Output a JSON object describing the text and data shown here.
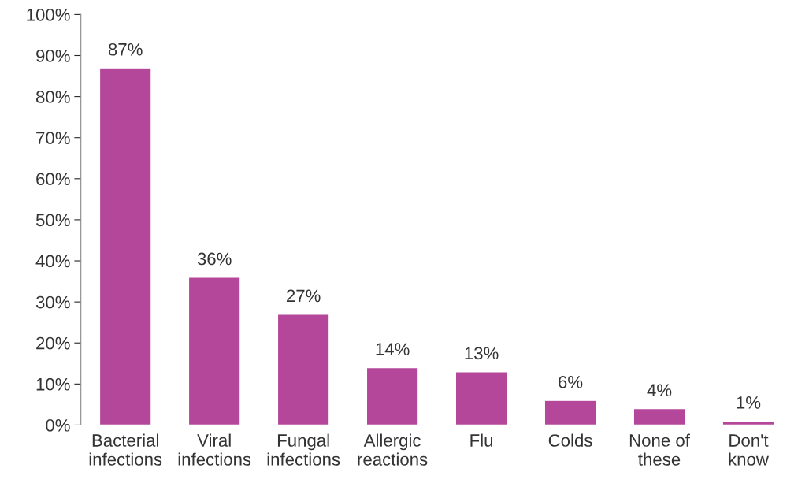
{
  "chart_data": {
    "type": "bar",
    "categories": [
      "Bacterial\ninfections",
      "Viral\ninfections",
      "Fungal\ninfections",
      "Allergic\nreactions",
      "Flu",
      "Colds",
      "None of\nthese",
      "Don't\nknow"
    ],
    "values": [
      87,
      36,
      27,
      14,
      13,
      6,
      4,
      1
    ],
    "value_labels": [
      "87%",
      "36%",
      "27%",
      "14%",
      "13%",
      "6%",
      "4%",
      "1%"
    ],
    "color": "#b5479b",
    "ylim": [
      0,
      100
    ],
    "yticks": [
      {
        "value": 0,
        "label": "0%"
      },
      {
        "value": 10,
        "label": "10%"
      },
      {
        "value": 20,
        "label": "20%"
      },
      {
        "value": 30,
        "label": "30%"
      },
      {
        "value": 40,
        "label": "40%"
      },
      {
        "value": 50,
        "label": "50%"
      },
      {
        "value": 60,
        "label": "60%"
      },
      {
        "value": 70,
        "label": "70%"
      },
      {
        "value": 80,
        "label": "80%"
      },
      {
        "value": 90,
        "label": "90%"
      },
      {
        "value": 100,
        "label": "100%"
      }
    ],
    "grid": false,
    "legend": false
  }
}
